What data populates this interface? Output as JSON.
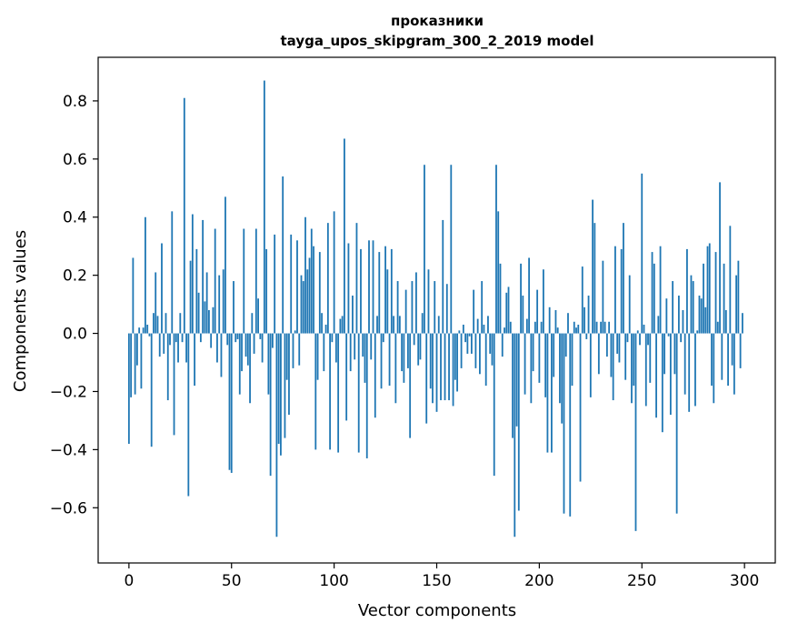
{
  "chart_data": {
    "type": "bar",
    "title": "проказники",
    "subtitle": "tayga_upos_skipgram_300_2_2019 model",
    "xlabel": "Vector components",
    "ylabel": "Components values",
    "xlim": [
      -15,
      315
    ],
    "ylim": [
      -0.79,
      0.95
    ],
    "xticks": [
      0,
      50,
      100,
      150,
      200,
      250,
      300
    ],
    "yticks": [
      -0.6,
      -0.4,
      -0.2,
      0.0,
      0.2,
      0.4,
      0.6,
      0.8
    ],
    "ytick_labels": [
      "−0.6",
      "−0.4",
      "−0.2",
      "0.0",
      "0.2",
      "0.4",
      "0.6",
      "0.8"
    ],
    "color": "#1f77b4",
    "values": [
      -0.38,
      -0.22,
      0.26,
      -0.21,
      -0.11,
      0.02,
      -0.19,
      0.02,
      0.4,
      0.03,
      -0.01,
      -0.39,
      0.07,
      0.21,
      0.06,
      -0.08,
      0.31,
      -0.07,
      0.07,
      -0.23,
      -0.04,
      0.42,
      -0.35,
      -0.03,
      -0.1,
      0.07,
      -0.03,
      0.81,
      -0.1,
      -0.56,
      0.25,
      0.41,
      -0.18,
      0.29,
      0.14,
      -0.03,
      0.39,
      0.11,
      0.21,
      0.08,
      -0.05,
      0.09,
      0.36,
      -0.1,
      0.2,
      -0.15,
      0.22,
      0.47,
      -0.04,
      -0.47,
      -0.48,
      0.18,
      -0.03,
      -0.02,
      -0.21,
      -0.13,
      0.36,
      -0.08,
      -0.11,
      -0.24,
      0.07,
      -0.07,
      0.36,
      0.12,
      -0.02,
      -0.1,
      0.87,
      0.29,
      -0.21,
      -0.49,
      -0.05,
      0.34,
      -0.7,
      -0.38,
      -0.42,
      0.54,
      -0.36,
      -0.16,
      -0.28,
      0.34,
      -0.12,
      0.01,
      0.32,
      -0.11,
      0.2,
      0.18,
      0.4,
      0.22,
      0.26,
      0.36,
      0.3,
      -0.4,
      -0.16,
      0.28,
      0.07,
      -0.13,
      0.03,
      0.38,
      -0.4,
      -0.03,
      0.42,
      -0.1,
      -0.41,
      0.05,
      0.06,
      0.67,
      -0.3,
      0.31,
      -0.13,
      0.13,
      -0.09,
      0.38,
      -0.41,
      0.29,
      -0.08,
      -0.17,
      -0.43,
      0.32,
      -0.09,
      0.32,
      -0.29,
      0.06,
      0.28,
      -0.19,
      -0.03,
      0.3,
      0.22,
      -0.18,
      0.29,
      0.06,
      -0.24,
      0.18,
      0.06,
      -0.13,
      -0.17,
      0.15,
      -0.12,
      -0.36,
      0.18,
      -0.04,
      0.21,
      -0.11,
      -0.09,
      0.07,
      0.58,
      -0.31,
      0.22,
      -0.19,
      -0.24,
      0.18,
      -0.27,
      0.06,
      -0.23,
      0.39,
      -0.23,
      0.17,
      -0.23,
      0.58,
      -0.25,
      -0.16,
      -0.2,
      0.01,
      -0.12,
      0.03,
      -0.03,
      -0.07,
      -0.01,
      -0.07,
      0.15,
      -0.12,
      0.05,
      -0.14,
      0.18,
      0.03,
      -0.18,
      0.06,
      -0.07,
      -0.11,
      -0.49,
      0.58,
      0.42,
      0.24,
      -0.08,
      0.02,
      0.14,
      0.16,
      0.04,
      -0.36,
      -0.7,
      -0.32,
      -0.61,
      0.24,
      0.13,
      -0.21,
      0.05,
      0.26,
      -0.24,
      -0.13,
      0.04,
      0.15,
      -0.17,
      0.04,
      0.22,
      -0.22,
      -0.41,
      0.09,
      -0.41,
      -0.15,
      0.08,
      0.02,
      -0.24,
      -0.31,
      -0.62,
      -0.08,
      0.07,
      -0.63,
      -0.18,
      0.04,
      0.02,
      0.03,
      -0.51,
      0.23,
      0.09,
      -0.02,
      0.13,
      -0.22,
      0.46,
      0.38,
      0.04,
      -0.14,
      0.04,
      0.25,
      0.04,
      -0.08,
      0.04,
      -0.15,
      -0.23,
      0.3,
      -0.07,
      -0.1,
      0.29,
      0.38,
      -0.16,
      -0.03,
      0.2,
      -0.24,
      -0.18,
      -0.68,
      0.01,
      -0.04,
      0.55,
      0.03,
      -0.25,
      -0.04,
      -0.17,
      0.28,
      0.24,
      -0.29,
      0.06,
      0.3,
      -0.34,
      -0.14,
      0.12,
      -0.01,
      -0.28,
      0.18,
      -0.14,
      -0.62,
      0.13,
      -0.03,
      0.08,
      -0.21,
      0.29,
      -0.27,
      0.2,
      0.18,
      -0.25,
      0.01,
      0.13,
      0.12,
      0.24,
      0.09,
      0.3,
      0.31,
      -0.18,
      -0.24,
      0.28,
      0.04,
      0.52,
      -0.16,
      0.24,
      0.08,
      -0.18,
      0.37,
      -0.11,
      -0.21,
      0.2,
      0.25,
      -0.12,
      0.07
    ]
  }
}
